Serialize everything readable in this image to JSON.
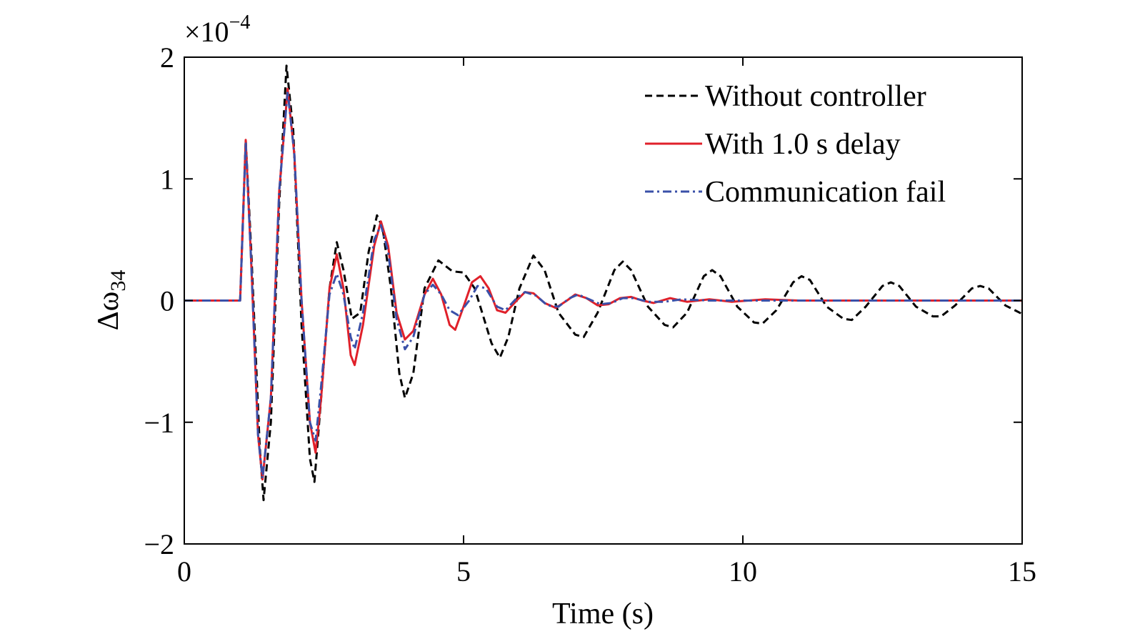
{
  "chart_data": {
    "type": "line",
    "xlabel": "Time (s)",
    "ylabel_main": "Δω",
    "ylabel_sub": "34",
    "y_exponent": "−4",
    "y_exponent_prefix": "×10",
    "xlim": [
      0,
      15
    ],
    "ylim": [
      -2,
      2
    ],
    "xticks": [
      0,
      5,
      10,
      15
    ],
    "yticks": [
      -2,
      -1,
      0,
      1,
      2
    ],
    "xtick_labels": [
      "0",
      "5",
      "10",
      "15"
    ],
    "ytick_labels": [
      "−2",
      "−1",
      "0",
      "1",
      "2"
    ],
    "grid": false,
    "legend_position": "top-right",
    "series": [
      {
        "name": "Without controller",
        "color": "#000000",
        "dash": "dashed",
        "points": [
          [
            0,
            0
          ],
          [
            1.0,
            0
          ],
          [
            1.1,
            1.32
          ],
          [
            1.2,
            0.4
          ],
          [
            1.35,
            -1.2
          ],
          [
            1.42,
            -1.64
          ],
          [
            1.55,
            -1.0
          ],
          [
            1.7,
            0.8
          ],
          [
            1.83,
            1.93
          ],
          [
            1.95,
            1.4
          ],
          [
            2.1,
            -0.2
          ],
          [
            2.25,
            -1.3
          ],
          [
            2.33,
            -1.49
          ],
          [
            2.45,
            -0.8
          ],
          [
            2.6,
            0.1
          ],
          [
            2.73,
            0.48
          ],
          [
            2.85,
            0.25
          ],
          [
            3.0,
            -0.15
          ],
          [
            3.15,
            -0.1
          ],
          [
            3.3,
            0.4
          ],
          [
            3.45,
            0.7
          ],
          [
            3.55,
            0.6
          ],
          [
            3.7,
            0.1
          ],
          [
            3.85,
            -0.6
          ],
          [
            3.95,
            -0.8
          ],
          [
            4.1,
            -0.6
          ],
          [
            4.3,
            0.1
          ],
          [
            4.55,
            0.33
          ],
          [
            4.8,
            0.24
          ],
          [
            5.0,
            0.23
          ],
          [
            5.2,
            0.1
          ],
          [
            5.5,
            -0.35
          ],
          [
            5.65,
            -0.47
          ],
          [
            5.8,
            -0.3
          ],
          [
            6.0,
            0.1
          ],
          [
            6.25,
            0.37
          ],
          [
            6.45,
            0.25
          ],
          [
            6.7,
            -0.1
          ],
          [
            7.0,
            -0.28
          ],
          [
            7.15,
            -0.3
          ],
          [
            7.4,
            -0.1
          ],
          [
            7.7,
            0.25
          ],
          [
            7.85,
            0.32
          ],
          [
            8.0,
            0.25
          ],
          [
            8.3,
            -0.05
          ],
          [
            8.6,
            -0.2
          ],
          [
            8.75,
            -0.22
          ],
          [
            9.0,
            -0.1
          ],
          [
            9.3,
            0.2
          ],
          [
            9.45,
            0.25
          ],
          [
            9.6,
            0.2
          ],
          [
            9.9,
            -0.05
          ],
          [
            10.2,
            -0.18
          ],
          [
            10.35,
            -0.19
          ],
          [
            10.6,
            -0.08
          ],
          [
            10.9,
            0.15
          ],
          [
            11.05,
            0.2
          ],
          [
            11.2,
            0.17
          ],
          [
            11.5,
            -0.05
          ],
          [
            11.8,
            -0.15
          ],
          [
            11.95,
            -0.16
          ],
          [
            12.2,
            -0.05
          ],
          [
            12.5,
            0.12
          ],
          [
            12.65,
            0.15
          ],
          [
            12.8,
            0.12
          ],
          [
            13.1,
            -0.05
          ],
          [
            13.4,
            -0.13
          ],
          [
            13.55,
            -0.13
          ],
          [
            13.8,
            -0.04
          ],
          [
            14.1,
            0.1
          ],
          [
            14.25,
            0.12
          ],
          [
            14.4,
            0.1
          ],
          [
            14.7,
            -0.04
          ],
          [
            15.0,
            -0.11
          ]
        ]
      },
      {
        "name": "With 1.0 s delay",
        "color": "#e0202a",
        "dash": "solid",
        "points": [
          [
            0,
            0
          ],
          [
            1.0,
            0
          ],
          [
            1.1,
            1.32
          ],
          [
            1.2,
            0.3
          ],
          [
            1.32,
            -1.1
          ],
          [
            1.4,
            -1.47
          ],
          [
            1.55,
            -0.8
          ],
          [
            1.7,
            0.9
          ],
          [
            1.85,
            1.74
          ],
          [
            1.97,
            1.2
          ],
          [
            2.1,
            0.0
          ],
          [
            2.25,
            -1.0
          ],
          [
            2.35,
            -1.25
          ],
          [
            2.45,
            -0.8
          ],
          [
            2.6,
            0.1
          ],
          [
            2.73,
            0.38
          ],
          [
            2.85,
            0.1
          ],
          [
            2.98,
            -0.45
          ],
          [
            3.05,
            -0.53
          ],
          [
            3.2,
            -0.2
          ],
          [
            3.4,
            0.45
          ],
          [
            3.52,
            0.65
          ],
          [
            3.65,
            0.45
          ],
          [
            3.8,
            -0.1
          ],
          [
            3.95,
            -0.32
          ],
          [
            4.1,
            -0.25
          ],
          [
            4.3,
            0.05
          ],
          [
            4.45,
            0.18
          ],
          [
            4.6,
            0.05
          ],
          [
            4.75,
            -0.2
          ],
          [
            4.85,
            -0.24
          ],
          [
            5.0,
            -0.05
          ],
          [
            5.15,
            0.15
          ],
          [
            5.3,
            0.2
          ],
          [
            5.45,
            0.1
          ],
          [
            5.6,
            -0.08
          ],
          [
            5.75,
            -0.1
          ],
          [
            5.95,
            0.0
          ],
          [
            6.1,
            0.07
          ],
          [
            6.25,
            0.06
          ],
          [
            6.45,
            -0.02
          ],
          [
            6.65,
            -0.06
          ],
          [
            6.85,
            0.0
          ],
          [
            7.0,
            0.05
          ],
          [
            7.2,
            0.02
          ],
          [
            7.4,
            -0.04
          ],
          [
            7.6,
            -0.03
          ],
          [
            7.8,
            0.02
          ],
          [
            8.0,
            0.03
          ],
          [
            8.2,
            0.0
          ],
          [
            8.4,
            -0.02
          ],
          [
            8.7,
            0.02
          ],
          [
            9.0,
            -0.01
          ],
          [
            9.4,
            0.01
          ],
          [
            9.8,
            -0.01
          ],
          [
            10.4,
            0.01
          ],
          [
            11.0,
            0.0
          ],
          [
            15.0,
            0.0
          ]
        ]
      },
      {
        "name": "Communication fail",
        "color": "#3a50a8",
        "dash": "dashdot",
        "points": [
          [
            0,
            0
          ],
          [
            1.0,
            0
          ],
          [
            1.1,
            1.3
          ],
          [
            1.2,
            0.3
          ],
          [
            1.32,
            -1.1
          ],
          [
            1.4,
            -1.46
          ],
          [
            1.55,
            -0.8
          ],
          [
            1.7,
            0.9
          ],
          [
            1.85,
            1.72
          ],
          [
            1.97,
            1.2
          ],
          [
            2.1,
            0.0
          ],
          [
            2.25,
            -1.0
          ],
          [
            2.35,
            -1.15
          ],
          [
            2.45,
            -0.7
          ],
          [
            2.6,
            0.05
          ],
          [
            2.73,
            0.22
          ],
          [
            2.85,
            0.05
          ],
          [
            2.98,
            -0.3
          ],
          [
            3.05,
            -0.4
          ],
          [
            3.2,
            -0.1
          ],
          [
            3.4,
            0.5
          ],
          [
            3.52,
            0.62
          ],
          [
            3.65,
            0.4
          ],
          [
            3.8,
            -0.15
          ],
          [
            3.95,
            -0.4
          ],
          [
            4.1,
            -0.3
          ],
          [
            4.3,
            0.05
          ],
          [
            4.45,
            0.13
          ],
          [
            4.6,
            0.05
          ],
          [
            4.75,
            -0.08
          ],
          [
            4.9,
            -0.12
          ],
          [
            5.1,
            0.0
          ],
          [
            5.25,
            0.12
          ],
          [
            5.4,
            0.1
          ],
          [
            5.6,
            -0.05
          ],
          [
            5.75,
            -0.08
          ],
          [
            5.95,
            0.02
          ],
          [
            6.1,
            0.07
          ],
          [
            6.3,
            0.04
          ],
          [
            6.5,
            -0.04
          ],
          [
            6.7,
            -0.05
          ],
          [
            6.9,
            0.02
          ],
          [
            7.05,
            0.05
          ],
          [
            7.25,
            0.01
          ],
          [
            7.45,
            -0.03
          ],
          [
            7.65,
            -0.02
          ],
          [
            7.85,
            0.02
          ],
          [
            8.05,
            0.02
          ],
          [
            8.3,
            -0.01
          ],
          [
            8.6,
            -0.01
          ],
          [
            8.9,
            0.01
          ],
          [
            9.4,
            0.0
          ],
          [
            15.0,
            0.0
          ]
        ]
      }
    ]
  }
}
